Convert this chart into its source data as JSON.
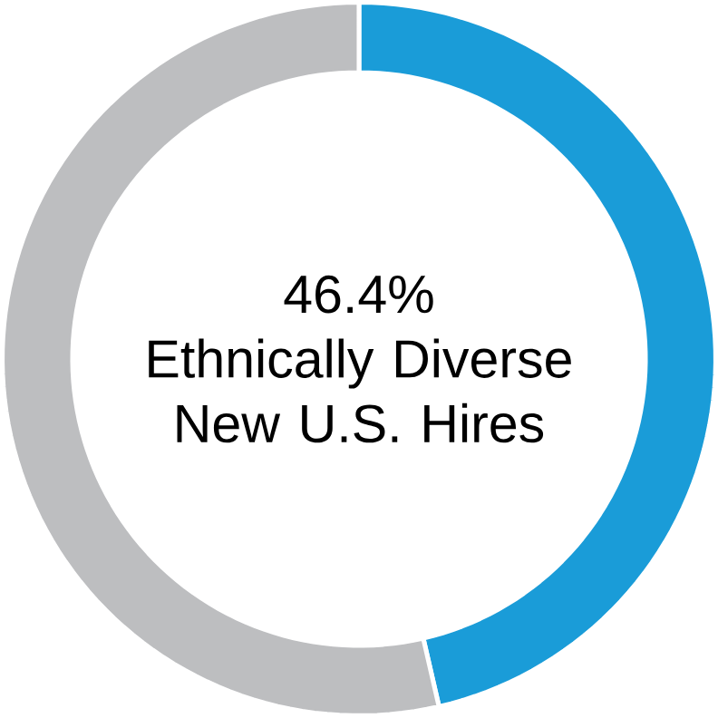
{
  "chart_data": {
    "type": "donut",
    "title": "Ethnically Diverse New U.S. Hires",
    "categories": [
      null,
      null
    ],
    "values": [
      46.4,
      53.6
    ],
    "colors": [
      "#1a9cd8",
      "#bdbec0"
    ],
    "value_labels": [
      "46.4%",
      null
    ]
  }
}
